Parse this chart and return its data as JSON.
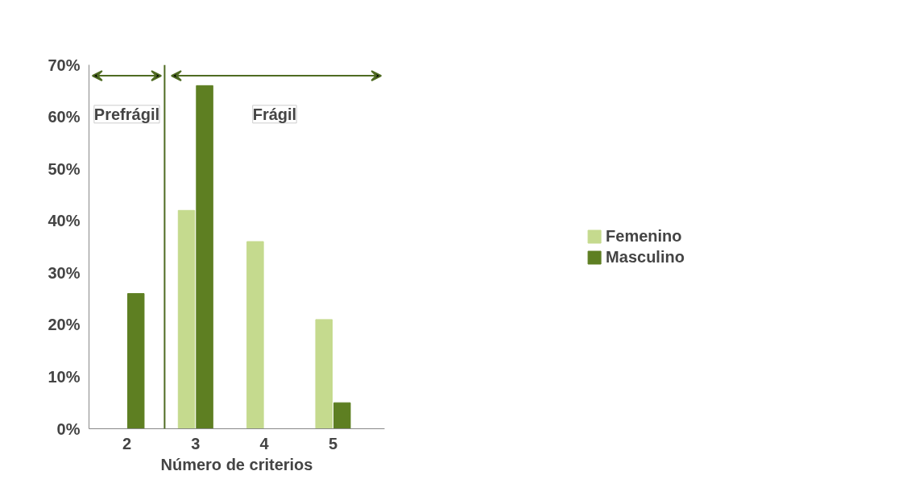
{
  "chart_data": {
    "type": "bar",
    "xlabel": "Número de criterios",
    "x": [
      2,
      3,
      4,
      5
    ],
    "xlim": [
      1.45,
      5.75
    ],
    "xticks": [
      2,
      3,
      4,
      5
    ],
    "ylim": [
      0,
      0.7
    ],
    "yticks": [
      {
        "value": 0,
        "label": "0%"
      },
      {
        "value": 0.1,
        "label": "10%"
      },
      {
        "value": 0.2,
        "label": "20%"
      },
      {
        "value": 0.3,
        "label": "30%"
      },
      {
        "value": 0.4,
        "label": "40%"
      },
      {
        "value": 0.5,
        "label": "50%"
      },
      {
        "value": 0.6,
        "label": "60%"
      },
      {
        "value": 0.7,
        "label": "70%"
      }
    ],
    "series": [
      {
        "name": "Femenino",
        "color": "#c5da8e",
        "values": [
          0,
          0.42,
          0.36,
          0.21
        ]
      },
      {
        "name": "Masculino",
        "color": "#5e7f22",
        "values": [
          0.26,
          0.66,
          0,
          0.05
        ]
      }
    ],
    "ref_lines": [
      {
        "axis": "x",
        "value": 2.55,
        "color": "#4f6b22"
      }
    ],
    "annotations": [
      "Prefrágil",
      "Frágil"
    ],
    "legend": "right",
    "grid": false
  }
}
